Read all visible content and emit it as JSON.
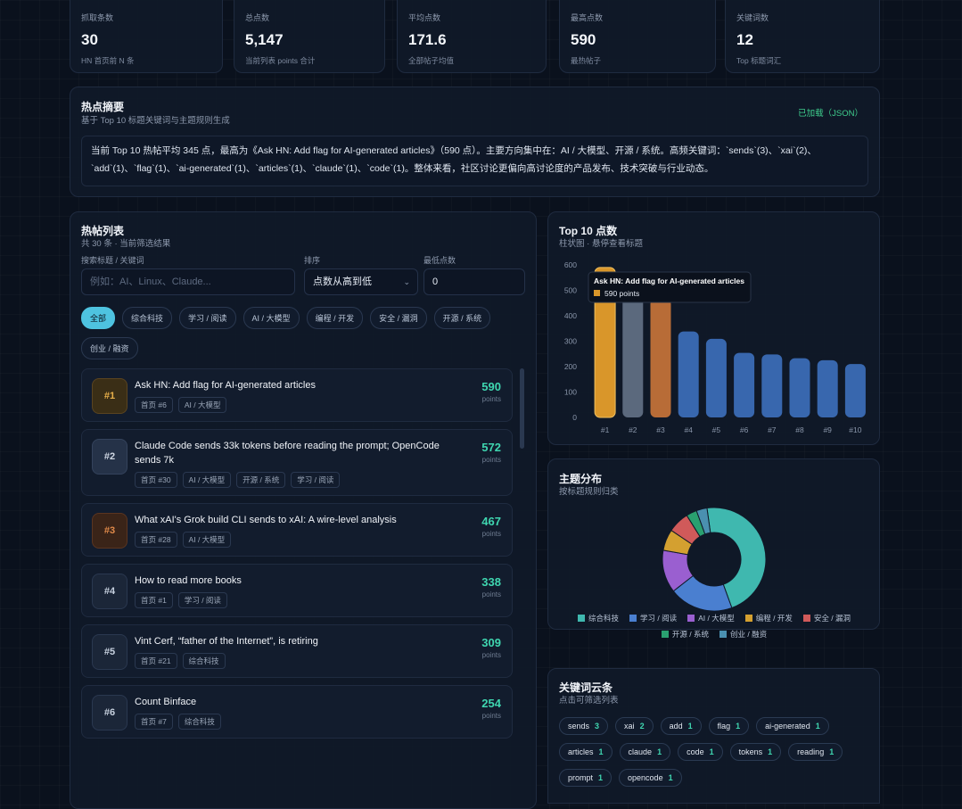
{
  "stats": [
    {
      "label": "抓取条数",
      "value": 30,
      "note": "HN 首页前 N 条"
    },
    {
      "label": "总点数",
      "value": "5,147",
      "note": "当前列表 points 合计"
    },
    {
      "label": "平均点数",
      "value": 171.6,
      "note": "全部帖子均值"
    },
    {
      "label": "最高点数",
      "value": 590,
      "note": "最热帖子"
    },
    {
      "label": "关键词数",
      "value": 12,
      "note": "Top 标题词汇"
    }
  ],
  "summary": {
    "title": "热点摘要",
    "subtitle": "基于 Top 10 标题关键词与主题规则生成",
    "status": "已加载（JSON）",
    "text": "当前 Top 10 热帖平均 345 点，最高为《Ask HN: Add flag for AI-generated articles》（590 点）。主要方向集中在：AI / 大模型、开源 / 系统。高频关键词：`sends`(3)、`xai`(2)、`add`(1)、`flag`(1)、`ai-generated`(1)、`articles`(1)、`claude`(1)、`code`(1)。整体来看，社区讨论更偏向高讨论度的产品发布、技术突破与行业动态。"
  },
  "posts": {
    "title": "热帖列表",
    "subtitle": "共 30 条 · 当前筛选结果",
    "search_label": "搜索标题 / 关键词",
    "search_placeholder": "例如：AI、Linux、Claude...",
    "sort_label": "排序",
    "sort_value": "点数从高到低",
    "min_label": "最低点数",
    "min_value": 0,
    "filters": [
      "全部",
      "综合科技",
      "学习 / 阅读",
      "AI / 大模型",
      "编程 / 开发",
      "安全 / 漏洞",
      "开源 / 系统",
      "创业 / 融资"
    ],
    "unit": "points",
    "items": [
      {
        "rank": "#1",
        "title": "Ask HN: Add flag for AI-generated articles",
        "tags": [
          "首页 #6",
          "AI / 大模型"
        ],
        "points": 590
      },
      {
        "rank": "#2",
        "title": "Claude Code sends 33k tokens before reading the prompt; OpenCode sends 7k",
        "tags": [
          "首页 #30",
          "AI / 大模型",
          "开源 / 系统",
          "学习 / 阅读"
        ],
        "points": 572
      },
      {
        "rank": "#3",
        "title": "What xAI's Grok build CLI sends to xAI: A wire-level analysis",
        "tags": [
          "首页 #28",
          "AI / 大模型"
        ],
        "points": 467
      },
      {
        "rank": "#4",
        "title": "How to read more books",
        "tags": [
          "首页 #1",
          "学习 / 阅读"
        ],
        "points": 338
      },
      {
        "rank": "#5",
        "title": "Vint Cerf, “father of the Internet”, is retiring",
        "tags": [
          "首页 #21",
          "综合科技"
        ],
        "points": 309
      },
      {
        "rank": "#6",
        "title": "Count Binface",
        "tags": [
          "首页 #7",
          "综合科技"
        ],
        "points": 254
      }
    ]
  },
  "chart_data": [
    {
      "type": "bar",
      "title": "Top 10 点数",
      "subtitle": "柱状图 · 悬停查看标题",
      "categories": [
        "#1",
        "#2",
        "#3",
        "#4",
        "#5",
        "#6",
        "#7",
        "#8",
        "#9",
        "#10"
      ],
      "values": [
        590,
        572,
        467,
        338,
        309,
        254,
        248,
        233,
        225,
        210
      ],
      "colors": [
        "#d9962a",
        "#66748a",
        "#d0773a",
        "#3f72c2",
        "#3f72c2",
        "#3f72c2",
        "#3f72c2",
        "#3f72c2",
        "#3f72c2",
        "#3f72c2"
      ],
      "ylim": [
        0,
        600
      ],
      "yticks": [
        0,
        100,
        200,
        300,
        400,
        500,
        600
      ],
      "tooltip": {
        "title": "Ask HN: Add flag for AI-generated articles",
        "label": "590 points"
      }
    },
    {
      "type": "pie",
      "title": "主题分布",
      "subtitle": "按标题规则归类",
      "categories": [
        "综合科技",
        "学习 / 阅读",
        "AI / 大模型",
        "编程 / 开发",
        "安全 / 漏洞",
        "开源 / 系统",
        "创业 / 融资"
      ],
      "values": [
        14,
        6,
        4,
        2,
        2,
        1,
        1
      ],
      "colors": [
        "#3fb8af",
        "#4a7fd0",
        "#9a5fd0",
        "#d4a030",
        "#d05a5a",
        "#2aa070",
        "#4a90b0"
      ]
    }
  ],
  "keywords": {
    "title": "关键词云条",
    "subtitle": "点击可筛选列表",
    "items": [
      {
        "word": "sends",
        "count": 3
      },
      {
        "word": "xai",
        "count": 2
      },
      {
        "word": "add",
        "count": 1
      },
      {
        "word": "flag",
        "count": 1
      },
      {
        "word": "ai-generated",
        "count": 1
      },
      {
        "word": "articles",
        "count": 1
      },
      {
        "word": "claude",
        "count": 1
      },
      {
        "word": "code",
        "count": 1
      },
      {
        "word": "tokens",
        "count": 1
      },
      {
        "word": "reading",
        "count": 1
      },
      {
        "word": "prompt",
        "count": 1
      },
      {
        "word": "opencode",
        "count": 1
      }
    ]
  }
}
